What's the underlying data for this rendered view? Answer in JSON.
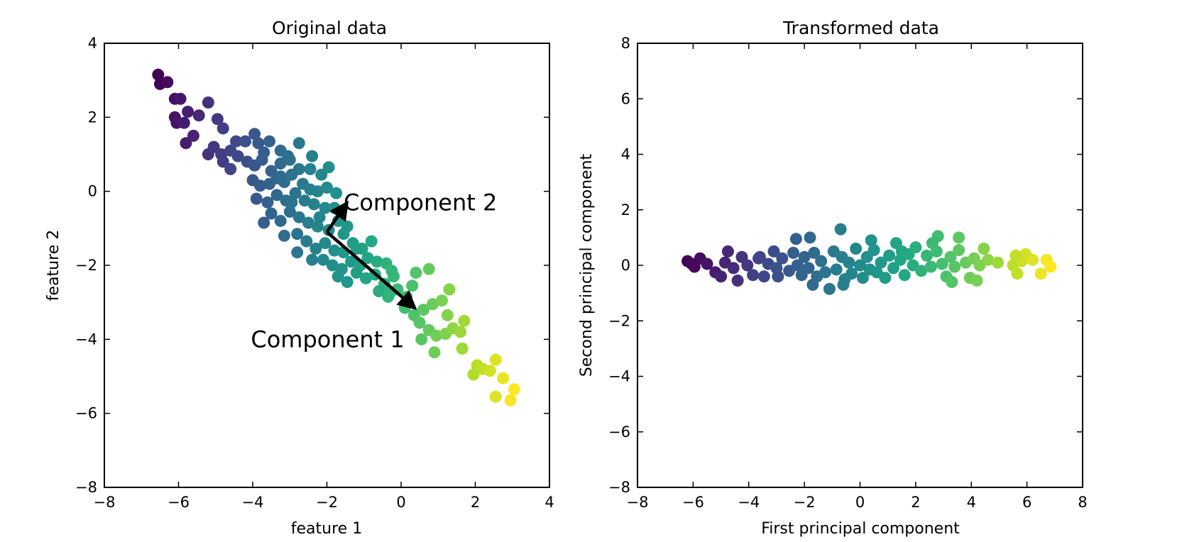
{
  "chart_data": [
    {
      "type": "scatter",
      "title": "Original data",
      "xlabel": "feature 1",
      "ylabel": "feature 2",
      "xlim": [
        -8,
        4
      ],
      "ylim": [
        -8,
        4
      ],
      "xticks": [
        -8,
        -6,
        -4,
        -2,
        0,
        2,
        4
      ],
      "yticks": [
        -8,
        -6,
        -4,
        -2,
        0,
        2,
        4
      ],
      "xtick_labels": [
        "−8",
        "−6",
        "−4",
        "−2",
        "0",
        "2",
        "4"
      ],
      "ytick_labels": [
        "−8",
        "−6",
        "−4",
        "−2",
        "0",
        "2",
        "4"
      ],
      "grid": false,
      "colormap": "viridis",
      "colors": {
        "start": "#440154",
        "mid": "#21918c",
        "end": "#fde725",
        "arrow": "#000000"
      },
      "arrows": [
        {
          "label": "Component 1",
          "from": [
            -2.0,
            -1.1
          ],
          "to": [
            0.25,
            -3.05
          ]
        },
        {
          "label": "Component 2",
          "from": [
            -2.0,
            -1.1
          ],
          "to": [
            -1.55,
            -0.45
          ]
        }
      ],
      "annotations": [
        {
          "text": "Component 2",
          "x": -1.55,
          "y": -0.3
        },
        {
          "text": "Component 1",
          "x": -4.05,
          "y": -4.0
        }
      ],
      "points": [
        [
          -6.55,
          3.15
        ],
        [
          -6.5,
          2.9
        ],
        [
          -6.3,
          2.95
        ],
        [
          -6.1,
          2.5
        ],
        [
          -5.95,
          2.5
        ],
        [
          -6.1,
          2.0
        ],
        [
          -6.05,
          1.85
        ],
        [
          -5.85,
          1.85
        ],
        [
          -5.75,
          2.15
        ],
        [
          -5.45,
          2.05
        ],
        [
          -5.2,
          2.4
        ],
        [
          -4.95,
          1.95
        ],
        [
          -4.8,
          1.7
        ],
        [
          -5.6,
          1.5
        ],
        [
          -5.8,
          1.3
        ],
        [
          -5.2,
          1.0
        ],
        [
          -5.05,
          1.2
        ],
        [
          -4.85,
          1.0
        ],
        [
          -4.6,
          1.1
        ],
        [
          -4.45,
          1.35
        ],
        [
          -4.2,
          1.35
        ],
        [
          -3.95,
          1.55
        ],
        [
          -3.85,
          1.3
        ],
        [
          -3.7,
          1.05
        ],
        [
          -3.55,
          1.35
        ],
        [
          -3.25,
          1.1
        ],
        [
          -2.75,
          1.3
        ],
        [
          -2.4,
          0.95
        ],
        [
          -4.8,
          0.8
        ],
        [
          -4.6,
          0.6
        ],
        [
          -4.4,
          0.95
        ],
        [
          -4.15,
          0.8
        ],
        [
          -3.95,
          0.7
        ],
        [
          -3.75,
          0.85
        ],
        [
          -3.5,
          0.55
        ],
        [
          -3.25,
          0.75
        ],
        [
          -3.0,
          0.85
        ],
        [
          -2.75,
          0.6
        ],
        [
          -2.45,
          0.6
        ],
        [
          -2.15,
          0.45
        ],
        [
          -1.95,
          0.65
        ],
        [
          -4.0,
          0.3
        ],
        [
          -3.8,
          0.15
        ],
        [
          -3.55,
          0.2
        ],
        [
          -3.35,
          0.35
        ],
        [
          -3.15,
          0.25
        ],
        [
          -2.95,
          0.45
        ],
        [
          -2.65,
          0.2
        ],
        [
          -2.45,
          0.05
        ],
        [
          -2.25,
          0.0
        ],
        [
          -2.0,
          0.1
        ],
        [
          -1.75,
          -0.05
        ],
        [
          -3.9,
          -0.2
        ],
        [
          -3.6,
          -0.3
        ],
        [
          -3.35,
          -0.1
        ],
        [
          -3.1,
          -0.25
        ],
        [
          -2.85,
          -0.05
        ],
        [
          -2.6,
          -0.25
        ],
        [
          -2.35,
          -0.35
        ],
        [
          -2.05,
          -0.45
        ],
        [
          -1.8,
          -0.45
        ],
        [
          -3.5,
          -0.6
        ],
        [
          -3.25,
          -0.8
        ],
        [
          -3.0,
          -0.55
        ],
        [
          -2.75,
          -0.7
        ],
        [
          -2.5,
          -0.85
        ],
        [
          -2.25,
          -0.95
        ],
        [
          -1.95,
          -1.05
        ],
        [
          -1.7,
          -0.8
        ],
        [
          -1.45,
          -0.95
        ],
        [
          -3.7,
          -0.85
        ],
        [
          -3.15,
          -1.2
        ],
        [
          -2.8,
          -1.15
        ],
        [
          -2.55,
          -1.35
        ],
        [
          -2.3,
          -1.55
        ],
        [
          -2.05,
          -1.4
        ],
        [
          -1.8,
          -1.6
        ],
        [
          -1.55,
          -1.65
        ],
        [
          -1.3,
          -1.4
        ],
        [
          -1.05,
          -1.55
        ],
        [
          -0.8,
          -1.35
        ],
        [
          -2.8,
          -1.65
        ],
        [
          -2.4,
          -1.85
        ],
        [
          -2.1,
          -1.85
        ],
        [
          -1.85,
          -2.0
        ],
        [
          -1.6,
          -2.1
        ],
        [
          -1.35,
          -1.9
        ],
        [
          -1.1,
          -2.0
        ],
        [
          -0.9,
          -1.8
        ],
        [
          -0.65,
          -1.9
        ],
        [
          -0.4,
          -1.95
        ],
        [
          -1.7,
          -2.3
        ],
        [
          -1.45,
          -2.45
        ],
        [
          -1.2,
          -2.2
        ],
        [
          -0.95,
          -2.35
        ],
        [
          -0.7,
          -2.25
        ],
        [
          -0.45,
          -2.5
        ],
        [
          -0.2,
          -2.3
        ],
        [
          -0.6,
          -2.7
        ],
        [
          -0.35,
          -2.85
        ],
        [
          -0.1,
          -2.65
        ],
        [
          0.15,
          -2.85
        ],
        [
          0.3,
          -2.55
        ],
        [
          0.4,
          -2.2
        ],
        [
          0.75,
          -2.1
        ],
        [
          0.1,
          -3.15
        ],
        [
          0.35,
          -3.35
        ],
        [
          0.6,
          -3.2
        ],
        [
          0.85,
          -3.05
        ],
        [
          1.1,
          -2.95
        ],
        [
          1.3,
          -2.65
        ],
        [
          1.25,
          -3.35
        ],
        [
          0.5,
          -3.55
        ],
        [
          0.75,
          -3.75
        ],
        [
          0.95,
          -3.9
        ],
        [
          1.2,
          -3.85
        ],
        [
          1.4,
          -3.7
        ],
        [
          0.55,
          -4.0
        ],
        [
          0.9,
          -4.35
        ],
        [
          1.6,
          -3.8
        ],
        [
          1.7,
          -3.5
        ],
        [
          1.65,
          -4.25
        ],
        [
          2.05,
          -4.7
        ],
        [
          2.2,
          -4.8
        ],
        [
          2.4,
          -4.85
        ],
        [
          2.55,
          -4.55
        ],
        [
          1.95,
          -4.95
        ],
        [
          2.75,
          -5.05
        ],
        [
          2.55,
          -5.55
        ],
        [
          2.95,
          -5.65
        ],
        [
          3.05,
          -5.35
        ],
        [
          -3.05,
          0.95
        ],
        [
          -2.95,
          -0.3
        ],
        [
          -1.55,
          -1.15
        ],
        [
          -0.25,
          -2.15
        ],
        [
          -3.25,
          0.4
        ],
        [
          -2.2,
          -0.7
        ],
        [
          -1.2,
          -1.55
        ],
        [
          -0.3,
          -2.75
        ]
      ]
    },
    {
      "type": "scatter",
      "title": "Transformed data",
      "xlabel": "First principal component",
      "ylabel": "Second principal component",
      "xlim": [
        -8,
        8
      ],
      "ylim": [
        -8,
        8
      ],
      "xticks": [
        -8,
        -6,
        -4,
        -2,
        0,
        2,
        4,
        6,
        8
      ],
      "yticks": [
        -8,
        -6,
        -4,
        -2,
        0,
        2,
        4,
        6,
        8
      ],
      "xtick_labels": [
        "−8",
        "−6",
        "−4",
        "−2",
        "0",
        "2",
        "4",
        "6",
        "8"
      ],
      "ytick_labels": [
        "−8",
        "−6",
        "−4",
        "−2",
        "0",
        "2",
        "4",
        "6",
        "8"
      ],
      "grid": false,
      "colormap": "viridis",
      "colors": {
        "start": "#440154",
        "mid": "#21918c",
        "end": "#fde725"
      },
      "points": [
        [
          -6.2,
          0.15
        ],
        [
          -6.05,
          0.05
        ],
        [
          -5.95,
          -0.05
        ],
        [
          -5.75,
          0.25
        ],
        [
          -5.5,
          0.05
        ],
        [
          -5.2,
          -0.25
        ],
        [
          -5.0,
          -0.4
        ],
        [
          -4.85,
          0.1
        ],
        [
          -4.75,
          0.5
        ],
        [
          -4.55,
          -0.1
        ],
        [
          -4.4,
          -0.55
        ],
        [
          -4.25,
          0.3
        ],
        [
          -4.05,
          0.0
        ],
        [
          -3.85,
          -0.35
        ],
        [
          -3.65,
          0.25
        ],
        [
          -3.45,
          -0.4
        ],
        [
          -3.3,
          0.05
        ],
        [
          -3.1,
          0.5
        ],
        [
          -2.95,
          -0.4
        ],
        [
          -2.8,
          0.25
        ],
        [
          -2.55,
          -0.2
        ],
        [
          -2.4,
          0.45
        ],
        [
          -2.25,
          0.0
        ],
        [
          -2.1,
          -0.35
        ],
        [
          -2.0,
          0.3
        ],
        [
          -2.3,
          0.95
        ],
        [
          -1.8,
          1.0
        ],
        [
          -1.85,
          -0.1
        ],
        [
          -1.65,
          0.45
        ],
        [
          -1.55,
          -0.4
        ],
        [
          -1.4,
          0.15
        ],
        [
          -1.25,
          -0.25
        ],
        [
          -1.1,
          -0.85
        ],
        [
          -0.95,
          0.5
        ],
        [
          -0.85,
          -0.15
        ],
        [
          -0.7,
          1.3
        ],
        [
          -0.65,
          0.3
        ],
        [
          -0.55,
          -0.5
        ],
        [
          -0.4,
          0.1
        ],
        [
          -0.3,
          -0.3
        ],
        [
          -0.15,
          0.6
        ],
        [
          0.0,
          0.0
        ],
        [
          0.1,
          -0.45
        ],
        [
          0.25,
          0.3
        ],
        [
          0.35,
          -0.15
        ],
        [
          0.5,
          0.55
        ],
        [
          0.6,
          -0.25
        ],
        [
          0.75,
          0.1
        ],
        [
          0.9,
          -0.45
        ],
        [
          1.05,
          0.35
        ],
        [
          1.2,
          -0.1
        ],
        [
          1.3,
          0.8
        ],
        [
          1.45,
          0.2
        ],
        [
          1.6,
          -0.35
        ],
        [
          1.75,
          0.4
        ],
        [
          1.9,
          0.0
        ],
        [
          2.0,
          0.65
        ],
        [
          2.2,
          -0.2
        ],
        [
          2.4,
          0.35
        ],
        [
          2.55,
          -0.05
        ],
        [
          2.75,
          0.5
        ],
        [
          2.8,
          1.05
        ],
        [
          2.95,
          0.05
        ],
        [
          3.1,
          -0.4
        ],
        [
          3.25,
          0.3
        ],
        [
          3.4,
          -0.05
        ],
        [
          3.55,
          0.55
        ],
        [
          3.55,
          1.0
        ],
        [
          3.8,
          0.1
        ],
        [
          3.95,
          -0.45
        ],
        [
          4.1,
          0.25
        ],
        [
          4.3,
          0.0
        ],
        [
          4.45,
          0.6
        ],
        [
          4.6,
          0.2
        ],
        [
          4.95,
          0.1
        ],
        [
          5.5,
          0.0
        ],
        [
          5.65,
          -0.3
        ],
        [
          5.8,
          0.15
        ],
        [
          5.95,
          0.4
        ],
        [
          6.2,
          0.2
        ],
        [
          6.5,
          -0.3
        ],
        [
          6.7,
          0.2
        ],
        [
          6.85,
          -0.05
        ],
        [
          -3.6,
          0.3
        ],
        [
          -1.7,
          -0.7
        ],
        [
          0.4,
          0.9
        ],
        [
          2.6,
          0.8
        ],
        [
          4.2,
          -0.55
        ],
        [
          -3.0,
          -0.1
        ],
        [
          -0.6,
          -0.7
        ],
        [
          1.5,
          0.5
        ],
        [
          3.3,
          -0.6
        ],
        [
          5.6,
          0.35
        ]
      ]
    }
  ]
}
